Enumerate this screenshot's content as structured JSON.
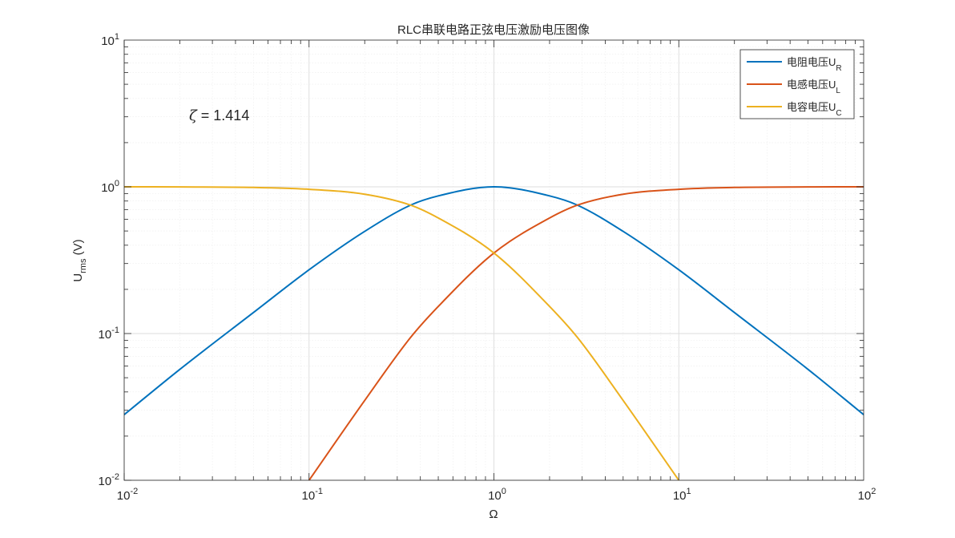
{
  "chart_data": {
    "type": "line",
    "title": "RLC串联电路正弦电压激励电压图像",
    "xlabel": "Ω",
    "ylabel_main": "U",
    "ylabel_sub": "rms",
    "ylabel_suffix": " (V)",
    "xscale": "log",
    "yscale": "log",
    "xlim": [
      0.01,
      100
    ],
    "ylim": [
      0.01,
      10
    ],
    "grid": true,
    "minor_grid": true,
    "legend_position": "top-right",
    "annotation": {
      "symbol": "ζ",
      "text": " = 1.414",
      "zeta": 1.414
    },
    "x_ticks": [
      {
        "base": "10",
        "exp": "-2",
        "value": 0.01
      },
      {
        "base": "10",
        "exp": "-1",
        "value": 0.1
      },
      {
        "base": "10",
        "exp": "0",
        "value": 1
      },
      {
        "base": "10",
        "exp": "1",
        "value": 10
      },
      {
        "base": "10",
        "exp": "2",
        "value": 100
      }
    ],
    "y_ticks": [
      {
        "base": "10",
        "exp": "-2",
        "value": 0.01
      },
      {
        "base": "10",
        "exp": "-1",
        "value": 0.1
      },
      {
        "base": "10",
        "exp": "0",
        "value": 1
      },
      {
        "base": "10",
        "exp": "1",
        "value": 10
      }
    ],
    "series": [
      {
        "name_main": "电阻电压U",
        "name_sub": "R",
        "color": "#0072BD",
        "x": [
          0.01,
          0.02,
          0.05,
          0.1,
          0.2,
          0.354,
          0.5,
          1,
          2,
          2.83,
          5,
          10,
          20,
          50,
          100
        ],
        "y": [
          0.028,
          0.057,
          0.139,
          0.272,
          0.497,
          0.75,
          0.867,
          1.0,
          0.867,
          0.75,
          0.497,
          0.272,
          0.139,
          0.057,
          0.028
        ]
      },
      {
        "name_main": "电感电压U",
        "name_sub": "L",
        "color": "#D95319",
        "x": [
          0.1,
          0.2,
          0.354,
          0.5,
          1,
          2,
          2.83,
          5,
          10,
          20,
          50,
          100
        ],
        "y": [
          0.01,
          0.035,
          0.094,
          0.153,
          0.354,
          0.613,
          0.75,
          0.89,
          0.962,
          0.99,
          0.998,
          1.0
        ]
      },
      {
        "name_main": "电容电压U",
        "name_sub": "C",
        "color": "#EDB120",
        "x": [
          0.01,
          0.02,
          0.05,
          0.1,
          0.2,
          0.354,
          0.5,
          1,
          2,
          2.83,
          5,
          10
        ],
        "y": [
          1.0,
          0.998,
          0.99,
          0.962,
          0.89,
          0.75,
          0.613,
          0.354,
          0.153,
          0.094,
          0.035,
          0.01
        ]
      }
    ]
  }
}
